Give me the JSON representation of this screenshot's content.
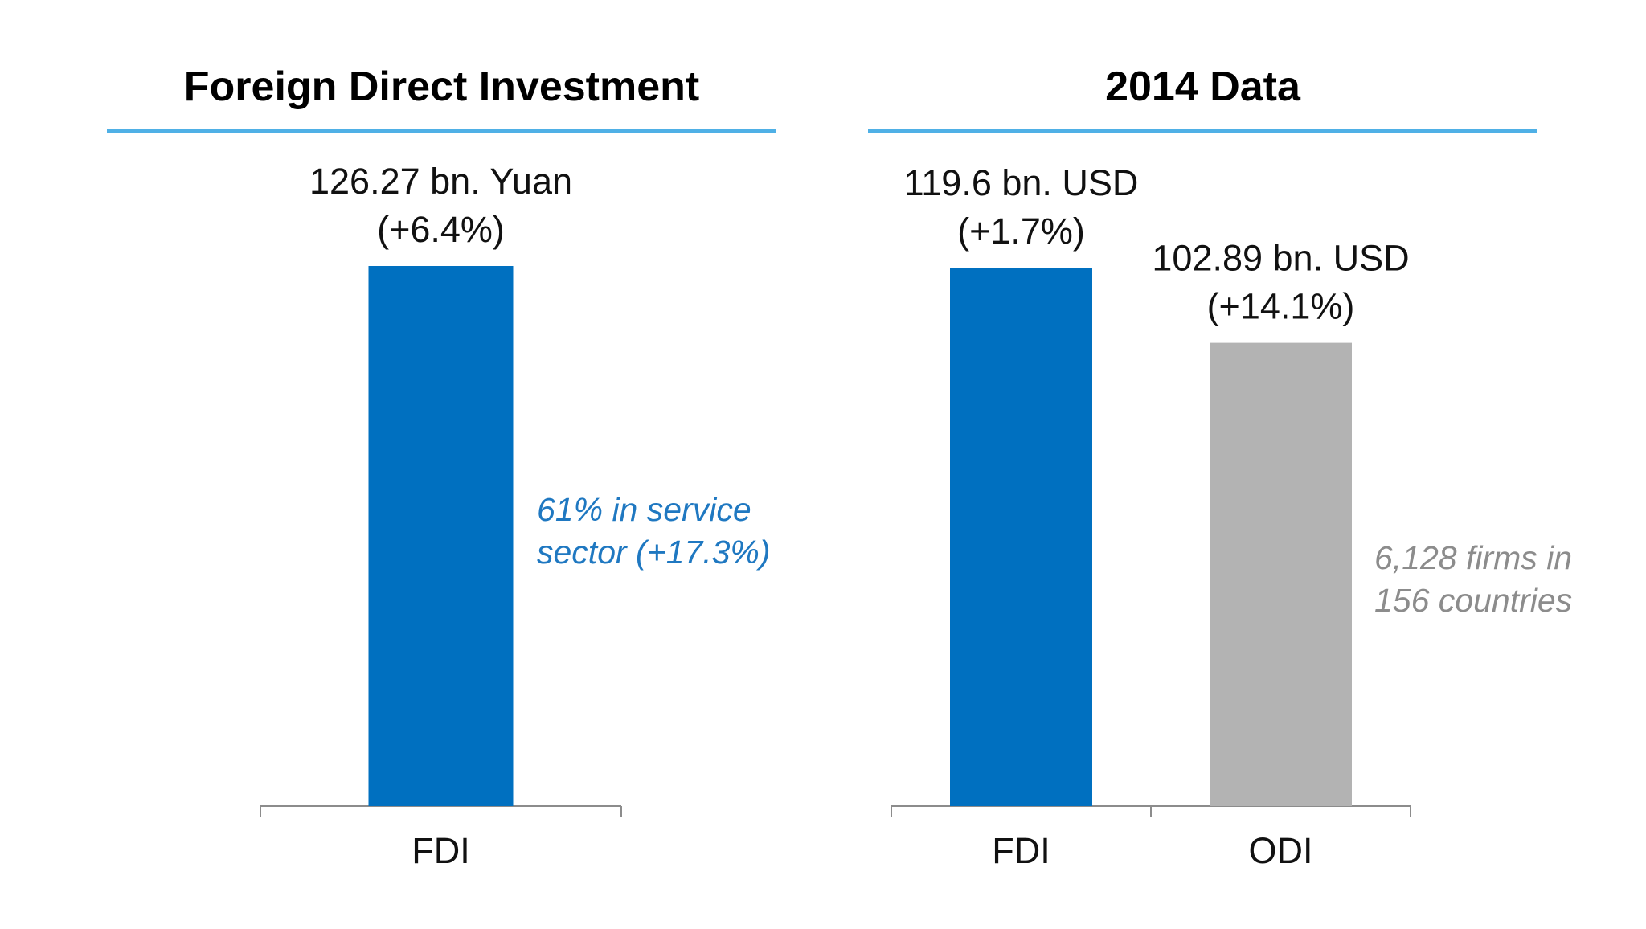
{
  "chart_data": [
    {
      "type": "bar",
      "title": "Foreign Direct Investment",
      "categories": [
        "FDI"
      ],
      "values": [
        126.27
      ],
      "unit": "bn. Yuan",
      "value_labels": [
        [
          "126.27 bn. Yuan",
          "(+6.4%)"
        ]
      ],
      "colors": [
        "#0070c0"
      ],
      "annotation": [
        "61% in service",
        "sector (+17.3%)"
      ],
      "annotation_color": "#1f78c1",
      "xlabel": "",
      "ylabel": "",
      "grid": false
    },
    {
      "type": "bar",
      "title": "2014 Data",
      "categories": [
        "FDI",
        "ODI"
      ],
      "values": [
        119.6,
        102.89
      ],
      "unit": "bn. USD",
      "value_labels": [
        [
          "119.6 bn. USD",
          "(+1.7%)"
        ],
        [
          "102.89 bn. USD",
          "(+14.1%)"
        ]
      ],
      "colors": [
        "#0070c0",
        "#b3b3b3"
      ],
      "annotation": [
        "6,128 firms in",
        "156 countries"
      ],
      "annotation_color": "#8c8c8c",
      "xlabel": "",
      "ylabel": "",
      "grid": false
    }
  ],
  "accent_color": "#4fb0e6"
}
